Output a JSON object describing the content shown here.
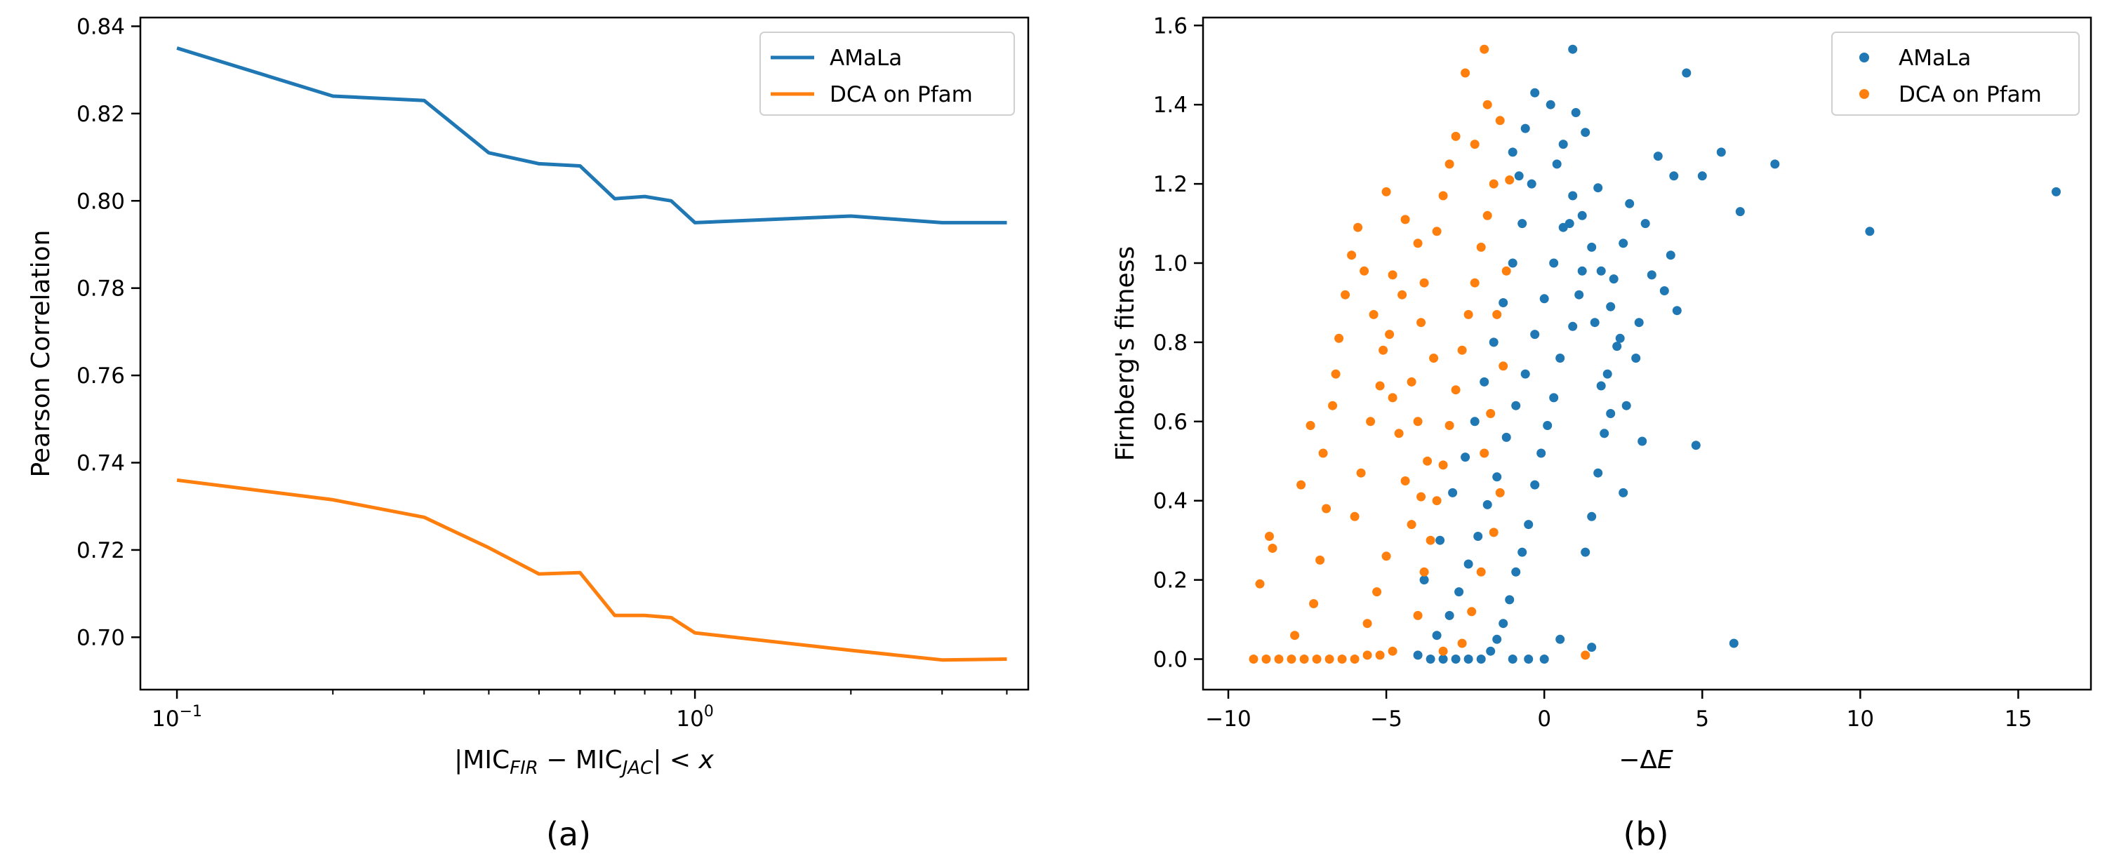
{
  "chart_data": [
    {
      "type": "line",
      "panel_label": "(a)",
      "xscale": "log",
      "xlim": [
        0.085,
        4.4
      ],
      "ylim": [
        0.688,
        0.842
      ],
      "xlabel": {
        "prefix": "|MIC",
        "sub1": "FIR",
        "mid": " − MIC",
        "sub2": "JAC",
        "suffix": "| < ",
        "var": "x"
      },
      "ylabel": "Pearson Correlation",
      "x_ticks": [
        {
          "value": 0.1,
          "base": "10",
          "exp": "−1"
        },
        {
          "value": 1,
          "base": "10",
          "exp": "0"
        }
      ],
      "y_ticks": [
        {
          "value": 0.7,
          "label": "0.70"
        },
        {
          "value": 0.72,
          "label": "0.72"
        },
        {
          "value": 0.74,
          "label": "0.74"
        },
        {
          "value": 0.76,
          "label": "0.76"
        },
        {
          "value": 0.78,
          "label": "0.78"
        },
        {
          "value": 0.8,
          "label": "0.80"
        },
        {
          "value": 0.82,
          "label": "0.82"
        },
        {
          "value": 0.84,
          "label": "0.84"
        }
      ],
      "legend_position": "top-right",
      "series": [
        {
          "name": "AMaLa",
          "color": "#1f77b4",
          "x": [
            0.1,
            0.2,
            0.3,
            0.4,
            0.5,
            0.6,
            0.7,
            0.8,
            0.9,
            1.0,
            2.0,
            3.0,
            4.0
          ],
          "y": [
            0.835,
            0.824,
            0.823,
            0.811,
            0.8085,
            0.808,
            0.8005,
            0.801,
            0.8,
            0.795,
            0.7965,
            0.795,
            0.795
          ]
        },
        {
          "name": "DCA on Pfam",
          "color": "#ff7f0e",
          "x": [
            0.1,
            0.2,
            0.3,
            0.4,
            0.5,
            0.6,
            0.7,
            0.8,
            0.9,
            1.0,
            2.0,
            3.0,
            4.0
          ],
          "y": [
            0.736,
            0.7315,
            0.7275,
            0.7205,
            0.7145,
            0.7148,
            0.705,
            0.705,
            0.7045,
            0.701,
            0.697,
            0.6948,
            0.695
          ]
        }
      ]
    },
    {
      "type": "scatter",
      "panel_label": "(b)",
      "xlim": [
        -10.8,
        17.3
      ],
      "ylim": [
        -0.077,
        1.62
      ],
      "xlabel": {
        "prefix": "−Δ",
        "var": "E"
      },
      "ylabel": "Firnberg's fitness",
      "x_ticks": [
        {
          "value": -10,
          "label": "−10"
        },
        {
          "value": -5,
          "label": "−5"
        },
        {
          "value": 0,
          "label": "0"
        },
        {
          "value": 5,
          "label": "5"
        },
        {
          "value": 10,
          "label": "10"
        },
        {
          "value": 15,
          "label": "15"
        }
      ],
      "y_ticks": [
        {
          "value": 0.0,
          "label": "0.0"
        },
        {
          "value": 0.2,
          "label": "0.2"
        },
        {
          "value": 0.4,
          "label": "0.4"
        },
        {
          "value": 0.6,
          "label": "0.6"
        },
        {
          "value": 0.8,
          "label": "0.8"
        },
        {
          "value": 1.0,
          "label": "1.0"
        },
        {
          "value": 1.2,
          "label": "1.2"
        },
        {
          "value": 1.4,
          "label": "1.4"
        },
        {
          "value": 1.6,
          "label": "1.6"
        }
      ],
      "legend_position": "top-right",
      "series": [
        {
          "name": "AMaLa",
          "color": "#1f77b4",
          "points": [
            [
              16.2,
              1.18
            ],
            [
              10.3,
              1.08
            ],
            [
              7.3,
              1.25
            ],
            [
              6.2,
              1.13
            ],
            [
              5.6,
              1.28
            ],
            [
              5.0,
              1.22
            ],
            [
              4.5,
              1.48
            ],
            [
              4.8,
              0.54
            ],
            [
              6.0,
              0.04
            ],
            [
              4.2,
              0.88
            ],
            [
              3.8,
              0.93
            ],
            [
              3.4,
              0.97
            ],
            [
              4.0,
              1.02
            ],
            [
              4.1,
              1.22
            ],
            [
              3.6,
              1.27
            ],
            [
              3.2,
              1.1
            ],
            [
              3.0,
              0.85
            ],
            [
              2.7,
              1.15
            ],
            [
              2.5,
              1.05
            ],
            [
              2.2,
              0.96
            ],
            [
              2.9,
              0.76
            ],
            [
              2.3,
              0.79
            ],
            [
              1.8,
              0.69
            ],
            [
              1.9,
              0.57
            ],
            [
              1.7,
              0.47
            ],
            [
              1.5,
              0.36
            ],
            [
              1.3,
              0.27
            ],
            [
              1.5,
              0.03
            ],
            [
              2.5,
              0.42
            ],
            [
              2.1,
              0.62
            ],
            [
              1.7,
              1.19
            ],
            [
              1.3,
              1.33
            ],
            [
              1.0,
              1.38
            ],
            [
              0.6,
              1.3
            ],
            [
              0.2,
              1.4
            ],
            [
              -0.3,
              1.43
            ],
            [
              -0.6,
              1.34
            ],
            [
              -0.8,
              1.22
            ],
            [
              -1.0,
              1.28
            ],
            [
              0.9,
              1.54
            ],
            [
              1.1,
              0.92
            ],
            [
              0.9,
              0.84
            ],
            [
              0.5,
              0.76
            ],
            [
              0.3,
              0.66
            ],
            [
              0.1,
              0.59
            ],
            [
              -0.1,
              0.52
            ],
            [
              -0.3,
              0.44
            ],
            [
              -0.5,
              0.34
            ],
            [
              -0.7,
              0.27
            ],
            [
              -0.9,
              0.22
            ],
            [
              -1.1,
              0.15
            ],
            [
              -1.3,
              0.09
            ],
            [
              -1.5,
              0.05
            ],
            [
              -1.7,
              0.02
            ],
            [
              -2.0,
              0.0
            ],
            [
              -2.4,
              0.0
            ],
            [
              -2.8,
              0.0
            ],
            [
              -3.2,
              0.0
            ],
            [
              -3.6,
              0.0
            ],
            [
              -4.0,
              0.01
            ],
            [
              -3.4,
              0.06
            ],
            [
              -3.0,
              0.11
            ],
            [
              -2.7,
              0.17
            ],
            [
              -2.4,
              0.24
            ],
            [
              -2.1,
              0.31
            ],
            [
              -1.8,
              0.39
            ],
            [
              -1.5,
              0.46
            ],
            [
              -1.2,
              0.56
            ],
            [
              -0.9,
              0.64
            ],
            [
              -0.6,
              0.72
            ],
            [
              -0.3,
              0.82
            ],
            [
              0.0,
              0.91
            ],
            [
              0.3,
              1.0
            ],
            [
              0.6,
              1.09
            ],
            [
              0.9,
              1.17
            ],
            [
              1.2,
              1.12
            ],
            [
              1.5,
              1.04
            ],
            [
              1.8,
              0.98
            ],
            [
              2.1,
              0.89
            ],
            [
              2.4,
              0.81
            ],
            [
              0.0,
              0.0
            ],
            [
              0.5,
              0.05
            ],
            [
              -0.5,
              0.0
            ],
            [
              -1.0,
              0.0
            ],
            [
              -3.8,
              0.2
            ],
            [
              -3.3,
              0.3
            ],
            [
              -2.9,
              0.42
            ],
            [
              -2.5,
              0.51
            ],
            [
              -2.2,
              0.6
            ],
            [
              -1.9,
              0.7
            ],
            [
              -1.6,
              0.8
            ],
            [
              -1.3,
              0.9
            ],
            [
              -1.0,
              1.0
            ],
            [
              -0.7,
              1.1
            ],
            [
              -0.4,
              1.2
            ],
            [
              0.4,
              1.25
            ],
            [
              0.8,
              1.1
            ],
            [
              1.2,
              0.98
            ],
            [
              1.6,
              0.85
            ],
            [
              2.0,
              0.72
            ],
            [
              2.6,
              0.64
            ],
            [
              3.1,
              0.55
            ]
          ]
        },
        {
          "name": "DCA on Pfam",
          "color": "#ff7f0e",
          "points": [
            [
              -9.2,
              0.0
            ],
            [
              -8.8,
              0.0
            ],
            [
              -8.4,
              0.0
            ],
            [
              -8.0,
              0.0
            ],
            [
              -7.6,
              0.0
            ],
            [
              -7.2,
              0.0
            ],
            [
              -6.8,
              0.0
            ],
            [
              -6.4,
              0.0
            ],
            [
              -6.0,
              0.0
            ],
            [
              -5.6,
              0.01
            ],
            [
              -5.2,
              0.01
            ],
            [
              -4.8,
              0.02
            ],
            [
              -9.0,
              0.19
            ],
            [
              -8.6,
              0.28
            ],
            [
              -8.7,
              0.31
            ],
            [
              -7.9,
              0.06
            ],
            [
              -7.3,
              0.14
            ],
            [
              -7.1,
              0.25
            ],
            [
              -6.9,
              0.38
            ],
            [
              -7.7,
              0.44
            ],
            [
              -7.4,
              0.59
            ],
            [
              -7.0,
              0.52
            ],
            [
              -6.7,
              0.64
            ],
            [
              -6.6,
              0.72
            ],
            [
              -6.5,
              0.81
            ],
            [
              -6.3,
              0.92
            ],
            [
              -6.1,
              1.02
            ],
            [
              -5.9,
              1.09
            ],
            [
              -5.7,
              0.98
            ],
            [
              -5.4,
              0.87
            ],
            [
              -5.1,
              0.78
            ],
            [
              -4.8,
              0.66
            ],
            [
              -4.6,
              0.57
            ],
            [
              -4.4,
              0.45
            ],
            [
              -4.2,
              0.34
            ],
            [
              -5.0,
              0.26
            ],
            [
              -5.3,
              0.17
            ],
            [
              -5.6,
              0.09
            ],
            [
              -4.0,
              0.11
            ],
            [
              -3.8,
              0.22
            ],
            [
              -3.6,
              0.3
            ],
            [
              -3.4,
              0.4
            ],
            [
              -3.2,
              0.49
            ],
            [
              -3.0,
              0.59
            ],
            [
              -2.8,
              0.68
            ],
            [
              -2.6,
              0.78
            ],
            [
              -2.4,
              0.87
            ],
            [
              -2.2,
              0.95
            ],
            [
              -2.0,
              1.04
            ],
            [
              -1.8,
              1.12
            ],
            [
              -1.6,
              1.2
            ],
            [
              -3.4,
              1.08
            ],
            [
              -3.2,
              1.17
            ],
            [
              -3.0,
              1.25
            ],
            [
              -2.8,
              1.32
            ],
            [
              -4.0,
              1.05
            ],
            [
              -4.4,
              1.11
            ],
            [
              -3.8,
              0.95
            ],
            [
              -5.0,
              1.18
            ],
            [
              -4.8,
              0.97
            ],
            [
              -2.5,
              1.48
            ],
            [
              -1.9,
              1.54
            ],
            [
              -1.4,
              1.36
            ],
            [
              -1.1,
              1.21
            ],
            [
              -1.8,
              1.4
            ],
            [
              -2.2,
              1.3
            ],
            [
              -1.2,
              0.98
            ],
            [
              -1.5,
              0.87
            ],
            [
              -1.3,
              0.74
            ],
            [
              -1.7,
              0.62
            ],
            [
              -1.9,
              0.52
            ],
            [
              -1.4,
              0.42
            ],
            [
              -1.6,
              0.32
            ],
            [
              -2.0,
              0.22
            ],
            [
              -2.3,
              0.12
            ],
            [
              -2.6,
              0.04
            ],
            [
              -3.2,
              0.02
            ],
            [
              1.3,
              0.01
            ],
            [
              -6.0,
              0.36
            ],
            [
              -5.8,
              0.47
            ],
            [
              -5.5,
              0.6
            ],
            [
              -5.2,
              0.69
            ],
            [
              -4.9,
              0.82
            ],
            [
              -4.5,
              0.92
            ],
            [
              -3.9,
              0.85
            ],
            [
              -3.5,
              0.76
            ],
            [
              -4.2,
              0.7
            ],
            [
              -4.0,
              0.6
            ],
            [
              -3.7,
              0.5
            ],
            [
              -3.9,
              0.41
            ]
          ]
        }
      ]
    }
  ]
}
